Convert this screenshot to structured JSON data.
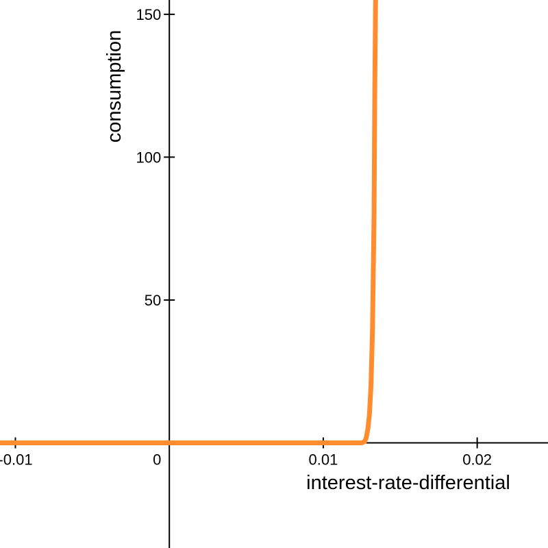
{
  "chart_data": {
    "type": "line",
    "xlabel": "interest-rate-differential",
    "ylabel": "consumption",
    "xlim": [
      -0.011,
      0.0246
    ],
    "ylim": [
      -36.8,
      155
    ],
    "grid": false,
    "x_ticks": [
      {
        "value": -0.01,
        "label": "-0.01"
      },
      {
        "value": 0,
        "label": "0"
      },
      {
        "value": 0.01,
        "label": "0.01"
      },
      {
        "value": 0.02,
        "label": "0.02"
      }
    ],
    "y_ticks": [
      {
        "value": 50,
        "label": "50"
      },
      {
        "value": 100,
        "label": "100"
      },
      {
        "value": 150,
        "label": "150"
      }
    ],
    "series": [
      {
        "color": "#ff8c2e",
        "x": [
          -0.011,
          -0.005,
          0,
          0.005,
          0.01,
          0.0125,
          0.0127,
          0.0128,
          0.0129,
          0.013,
          0.0131,
          0.0132,
          0.0133,
          0.01335,
          0.0134
        ],
        "y": [
          0,
          0,
          0,
          0,
          0,
          0,
          0.5,
          2,
          5,
          10,
          20,
          40,
          80,
          125,
          155
        ]
      }
    ]
  }
}
